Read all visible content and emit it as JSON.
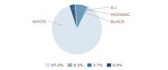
{
  "chart_data": {
    "type": "pie",
    "categories": [
      "WHITE",
      "A.I.",
      "HISPANIC",
      "BLACK"
    ],
    "values": [
      87.2,
      0.9,
      8.3,
      3.7
    ],
    "colors": [
      "#dce6f0",
      "#8eaec9",
      "#6b9ab8",
      "#2e5f8a"
    ],
    "legend": "bottom",
    "legend_entries": [
      {
        "value": 87.2,
        "label": "87.2%",
        "color": "#dce6f0"
      },
      {
        "value": 8.3,
        "label": "8.3%",
        "color": "#8eaec9"
      },
      {
        "value": 3.7,
        "label": "3.7%",
        "color": "#4472a0"
      },
      {
        "value": 0.9,
        "label": "0.9%",
        "color": "#1f3f6e"
      }
    ]
  }
}
